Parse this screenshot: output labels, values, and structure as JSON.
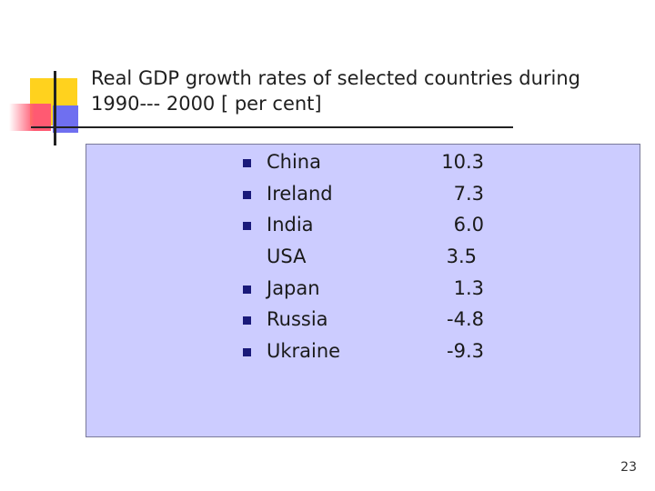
{
  "slide": {
    "title_line1": "Real GDP growth rates of selected countries during",
    "title_line2": "1990--- 2000 [ per cent]",
    "page_number": "23",
    "rows": [
      {
        "country": "China",
        "value": "10.3",
        "bullet": true
      },
      {
        "country": "Ireland",
        "value": "7.3",
        "bullet": true
      },
      {
        "country": "India",
        "value": "6.0",
        "bullet": true
      },
      {
        "country": "USA",
        "value": "3.5",
        "bullet": false
      },
      {
        "country": "Japan",
        "value": "1.3",
        "bullet": true
      },
      {
        "country": "Russia",
        "value": "-4.8",
        "bullet": true
      },
      {
        "country": "Ukraine",
        "value": "-9.3",
        "bullet": true
      }
    ],
    "colors": {
      "panel": "#ccccff",
      "bullet": "#1a1a7a",
      "accent_yellow": "#ffd21e",
      "accent_red": "#ff5a72",
      "accent_blue": "#6f6ff0"
    }
  }
}
